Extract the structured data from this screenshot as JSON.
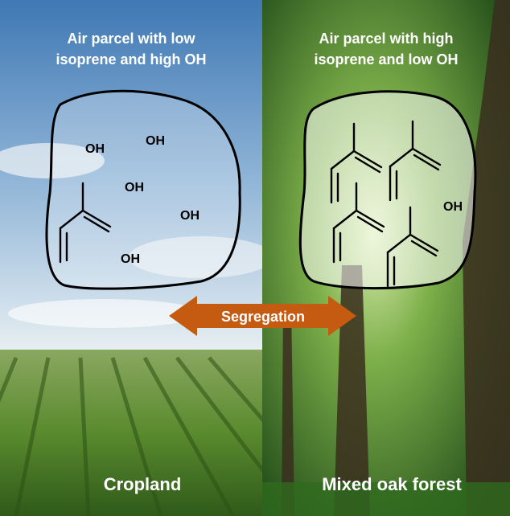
{
  "left": {
    "title_line1": "Air parcel with low",
    "title_line2": "isoprene and high OH",
    "oh_labels": [
      "OH",
      "OH",
      "OH",
      "OH",
      "OH"
    ],
    "caption": "Cropland"
  },
  "right": {
    "title_line1": "Air parcel with high",
    "title_line2": "isoprene and low OH",
    "oh_labels": [
      "OH"
    ],
    "caption": "Mixed oak forest"
  },
  "arrow": {
    "label": "Segregation"
  }
}
